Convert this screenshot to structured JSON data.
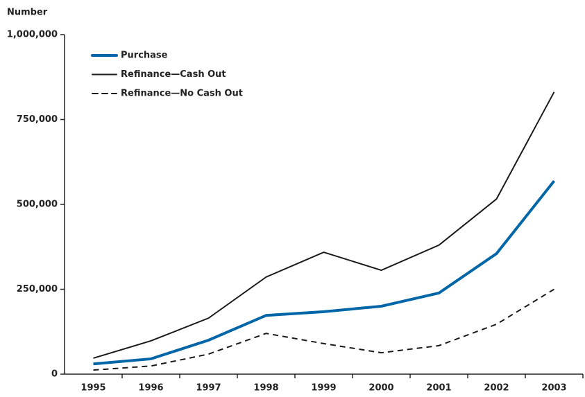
{
  "chart_data": {
    "type": "line",
    "y_axis_label": "Number",
    "categories": [
      "1995",
      "1996",
      "1997",
      "1998",
      "1999",
      "2000",
      "2001",
      "2002",
      "2003"
    ],
    "series": [
      {
        "name": "Purchase",
        "color": "#0066a8",
        "line_width": 4,
        "dashed": false,
        "values": [
          30000,
          45000,
          100000,
          173000,
          184000,
          200000,
          239000,
          355000,
          569000
        ]
      },
      {
        "name": "Refinance—Cash Out",
        "color": "#1a1a1a",
        "line_width": 2,
        "dashed": false,
        "values": [
          47000,
          98000,
          165000,
          286000,
          359000,
          306000,
          380000,
          516000,
          831000
        ]
      },
      {
        "name": "Refinance—No Cash Out",
        "color": "#1a1a1a",
        "line_width": 2,
        "dashed": true,
        "values": [
          12000,
          24000,
          59000,
          120000,
          90000,
          63000,
          84000,
          147000,
          250000
        ]
      }
    ],
    "ylim": [
      0,
      1000000
    ],
    "yticks": [
      0,
      {
        "value": 250000,
        "label": "250,000"
      },
      {
        "value": 500000,
        "label": "500,000"
      },
      {
        "value": 750000,
        "label": "750,000"
      },
      {
        "value": 1000000,
        "label": "1,000,000"
      }
    ],
    "legend": "upper-left"
  }
}
